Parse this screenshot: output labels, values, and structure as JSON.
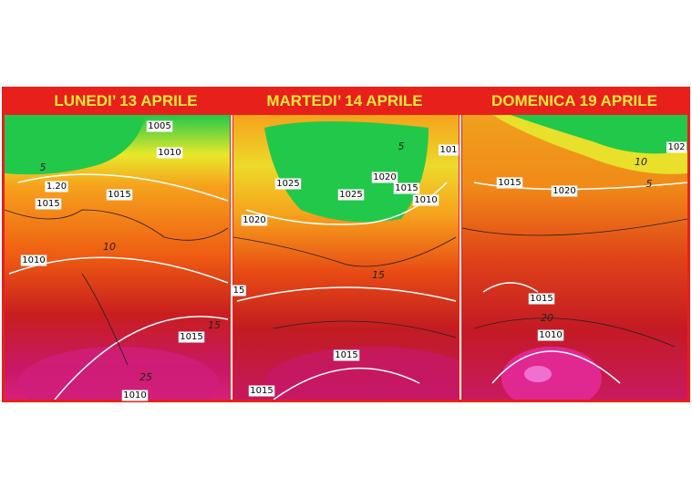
{
  "panels": [
    {
      "title": "LUNEDI’ 13 APRILE",
      "isobar_labels": [
        "1005",
        "1010",
        "1.20",
        "1015",
        "1015",
        "1010",
        "1015",
        "1010"
      ],
      "temperature_labels": [
        "5",
        "10",
        "15",
        "25"
      ]
    },
    {
      "title": "MARTEDI’ 14 APRILE",
      "isobar_labels": [
        "1025",
        "1025",
        "1020",
        "1015",
        "1010",
        "1020",
        "101",
        "15",
        "1015",
        "1015"
      ],
      "temperature_labels": [
        "5",
        "15"
      ]
    },
    {
      "title": "DOMENICA 19 APRILE",
      "isobar_labels": [
        "1015",
        "1020",
        "1015",
        "1010",
        "102"
      ],
      "temperature_labels": [
        "10",
        "5",
        "20"
      ]
    }
  ]
}
